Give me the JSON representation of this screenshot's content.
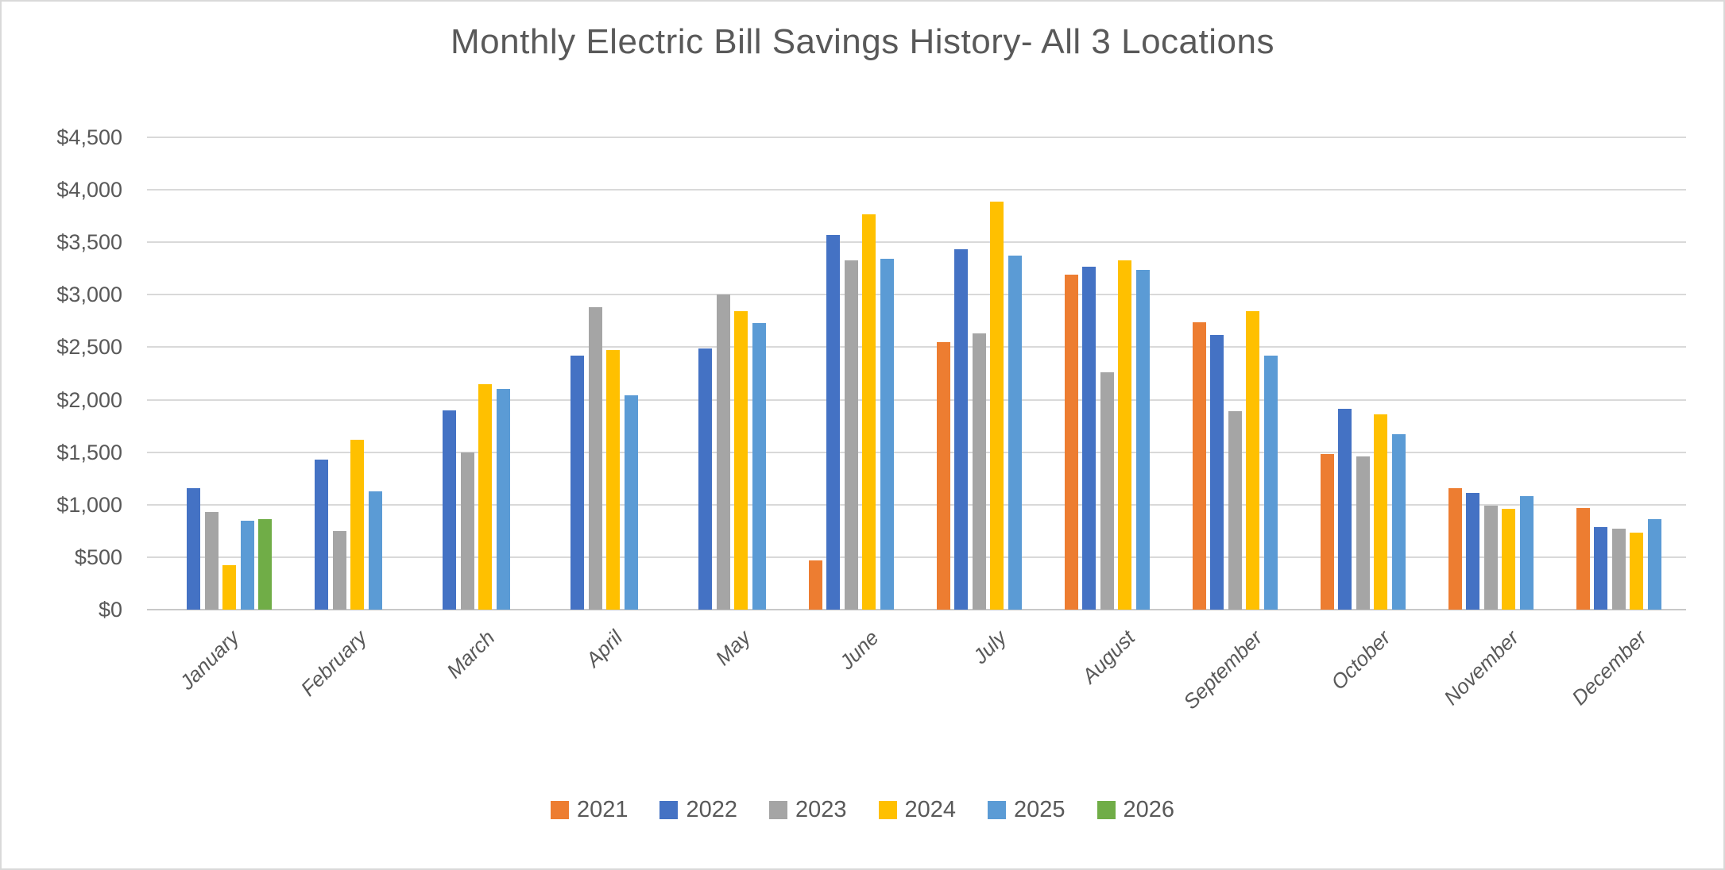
{
  "chart_data": {
    "type": "bar",
    "title": "Monthly Electric Bill Savings History- All 3 Locations",
    "categories": [
      "January",
      "February",
      "March",
      "April",
      "May",
      "June",
      "July",
      "August",
      "September",
      "October",
      "November",
      "December"
    ],
    "series": [
      {
        "name": "2021",
        "color": "#ED7D31",
        "values": [
          null,
          null,
          null,
          null,
          null,
          470,
          2550,
          3190,
          2740,
          1480,
          1160,
          970
        ]
      },
      {
        "name": "2022",
        "color": "#4472C4",
        "values": [
          1160,
          1430,
          1900,
          2420,
          2490,
          3570,
          3430,
          3270,
          2620,
          1910,
          1110,
          790
        ]
      },
      {
        "name": "2023",
        "color": "#A5A5A5",
        "values": [
          930,
          750,
          1500,
          2880,
          3000,
          3330,
          2630,
          2260,
          1890,
          1460,
          990,
          770
        ]
      },
      {
        "name": "2024",
        "color": "#FFC000",
        "values": [
          420,
          1620,
          2150,
          2470,
          2840,
          3770,
          3890,
          3330,
          2840,
          1860,
          960,
          730
        ]
      },
      {
        "name": "2025",
        "color": "#5B9BD5",
        "values": [
          850,
          1130,
          2100,
          2040,
          2730,
          3340,
          3370,
          3240,
          2420,
          1670,
          1080,
          860
        ]
      },
      {
        "name": "2026",
        "color": "#70AD47",
        "values": [
          860,
          null,
          null,
          null,
          null,
          null,
          null,
          null,
          null,
          null,
          null,
          null
        ]
      }
    ],
    "y_axis": {
      "min": 0,
      "max": 4500,
      "step": 500,
      "tick_labels": [
        "$0",
        "$500",
        "$1,000",
        "$1,500",
        "$2,000",
        "$2,500",
        "$3,000",
        "$3,500",
        "$4,000",
        "$4,500"
      ]
    },
    "grid": true,
    "legend_position": "bottom",
    "colors": {
      "title_text": "#595959",
      "axis_text": "#595959",
      "gridline": "#D9D9D9",
      "background": "#FFFFFF",
      "frame_border": "#D9D9D9"
    }
  }
}
